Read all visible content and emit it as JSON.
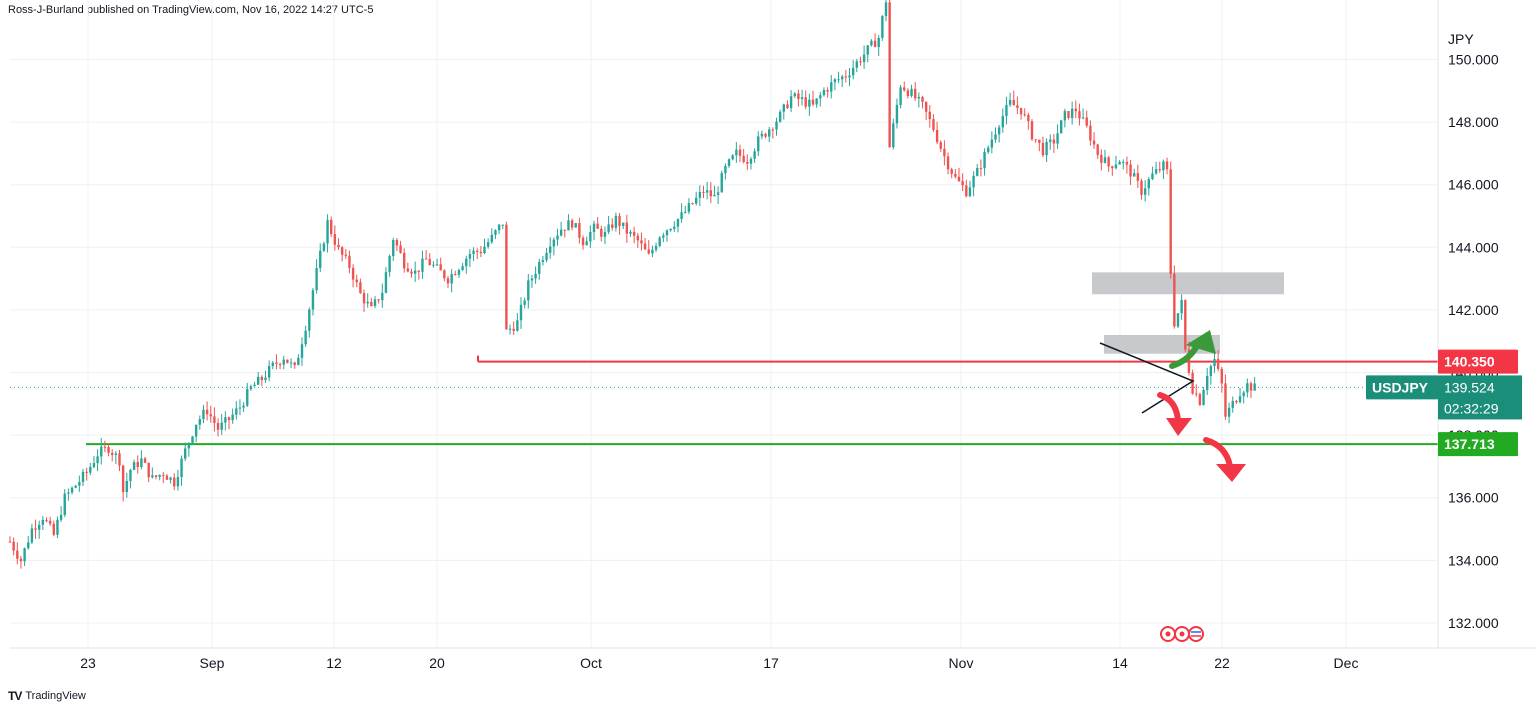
{
  "header": {
    "publisher": "Ross-J-Burland published on TradingView.com, Nov 16, 2022 14:27 UTC-5"
  },
  "footer": {
    "brand": "TradingView",
    "logo": "tradingview-logo-icon"
  },
  "colors": {
    "up": "#26a69a",
    "down": "#ef5350",
    "resistance": "#f23645",
    "support": "#22ab22",
    "zone": "#c8c9cd",
    "badge_symbol": "#1b8e7a",
    "arrow_up": "#3a9a3a",
    "arrow_down": "#f23645",
    "grid": "#eef0f3"
  },
  "chart_data": {
    "type": "candlestick",
    "symbol": "USDJPY",
    "currency": "JPY",
    "ylim": [
      131.2,
      151.9
    ],
    "y_ticks": [
      "132.000",
      "134.000",
      "136.000",
      "138.000",
      "140.000",
      "142.000",
      "144.000",
      "146.000",
      "148.000",
      "150.000"
    ],
    "x_ticks": [
      "23",
      "Sep",
      "12",
      "20",
      "Oct",
      "17",
      "Nov",
      "14",
      "22",
      "Dec"
    ],
    "close_price": "139.524",
    "countdown": "02:32:29",
    "levels": [
      {
        "name": "resistance",
        "value": "140.350"
      },
      {
        "name": "support",
        "value": "137.713"
      }
    ],
    "zones": [
      {
        "from": 142.5,
        "to": 143.2
      },
      {
        "from": 140.6,
        "to": 141.2
      }
    ],
    "path": [
      [
        0,
        134.6
      ],
      [
        3,
        134.0
      ],
      [
        6,
        135.0
      ],
      [
        9,
        135.4
      ],
      [
        12,
        134.8
      ],
      [
        15,
        136.0
      ],
      [
        18,
        136.4
      ],
      [
        21,
        136.8
      ],
      [
        24,
        137.4
      ],
      [
        27,
        137.6
      ],
      [
        30,
        137.2
      ],
      [
        31,
        136.2
      ],
      [
        33,
        136.9
      ],
      [
        36,
        137.2
      ],
      [
        39,
        136.6
      ],
      [
        42,
        136.8
      ],
      [
        45,
        136.5
      ],
      [
        48,
        137.5
      ],
      [
        51,
        138.4
      ],
      [
        54,
        138.8
      ],
      [
        57,
        138.2
      ],
      [
        60,
        138.5
      ],
      [
        63,
        138.9
      ],
      [
        66,
        139.5
      ],
      [
        69,
        139.8
      ],
      [
        72,
        140.2
      ],
      [
        75,
        140.5
      ],
      [
        78,
        140.1
      ],
      [
        81,
        141.5
      ],
      [
        84,
        143.2
      ],
      [
        87,
        144.8
      ],
      [
        90,
        143.9
      ],
      [
        93,
        143.4
      ],
      [
        96,
        142.5
      ],
      [
        99,
        142.0
      ],
      [
        102,
        142.6
      ],
      [
        105,
        144.3
      ],
      [
        108,
        143.5
      ],
      [
        111,
        143.2
      ],
      [
        114,
        143.6
      ],
      [
        117,
        143.3
      ],
      [
        120,
        143.0
      ],
      [
        123,
        143.4
      ],
      [
        126,
        143.8
      ],
      [
        129,
        143.9
      ],
      [
        132,
        144.3
      ],
      [
        135,
        144.8
      ],
      [
        136,
        141.3
      ],
      [
        139,
        141.6
      ],
      [
        142,
        142.8
      ],
      [
        145,
        143.5
      ],
      [
        148,
        144.2
      ],
      [
        151,
        144.6
      ],
      [
        154,
        144.8
      ],
      [
        157,
        144.2
      ],
      [
        160,
        144.6
      ],
      [
        163,
        144.4
      ],
      [
        166,
        144.9
      ],
      [
        169,
        144.5
      ],
      [
        172,
        144.2
      ],
      [
        175,
        143.7
      ],
      [
        178,
        144.4
      ],
      [
        181,
        144.7
      ],
      [
        184,
        145.0
      ],
      [
        187,
        145.4
      ],
      [
        190,
        145.8
      ],
      [
        193,
        145.6
      ],
      [
        196,
        146.5
      ],
      [
        199,
        147.0
      ],
      [
        202,
        146.8
      ],
      [
        205,
        147.4
      ],
      [
        208,
        147.8
      ],
      [
        211,
        148.2
      ],
      [
        214,
        148.8
      ],
      [
        217,
        148.7
      ],
      [
        220,
        148.5
      ],
      [
        223,
        149.0
      ],
      [
        226,
        149.3
      ],
      [
        229,
        149.5
      ],
      [
        232,
        149.9
      ],
      [
        235,
        150.3
      ],
      [
        238,
        150.7
      ],
      [
        240,
        151.9
      ],
      [
        241,
        147.2
      ],
      [
        244,
        149.2
      ],
      [
        247,
        148.9
      ],
      [
        250,
        148.5
      ],
      [
        253,
        147.8
      ],
      [
        256,
        146.9
      ],
      [
        259,
        146.2
      ],
      [
        262,
        145.8
      ],
      [
        265,
        146.4
      ],
      [
        268,
        147.2
      ],
      [
        271,
        148.0
      ],
      [
        274,
        148.6
      ],
      [
        277,
        148.4
      ],
      [
        280,
        147.6
      ],
      [
        283,
        147.1
      ],
      [
        286,
        147.4
      ],
      [
        289,
        148.2
      ],
      [
        292,
        148.4
      ],
      [
        295,
        147.8
      ],
      [
        298,
        147.0
      ],
      [
        301,
        146.6
      ],
      [
        304,
        146.8
      ],
      [
        307,
        146.4
      ],
      [
        310,
        145.8
      ],
      [
        313,
        146.3
      ],
      [
        316,
        146.6
      ],
      [
        317,
        146.4
      ],
      [
        318,
        143.2
      ],
      [
        319,
        141.6
      ],
      [
        321,
        142.2
      ],
      [
        322,
        140.7
      ],
      [
        324,
        139.5
      ],
      [
        326,
        139.1
      ],
      [
        328,
        140.0
      ],
      [
        330,
        140.4
      ],
      [
        332,
        139.6
      ],
      [
        333,
        138.6
      ],
      [
        335,
        139.0
      ],
      [
        337,
        139.4
      ],
      [
        339,
        139.6
      ],
      [
        341,
        139.5
      ]
    ],
    "candles": 342
  }
}
